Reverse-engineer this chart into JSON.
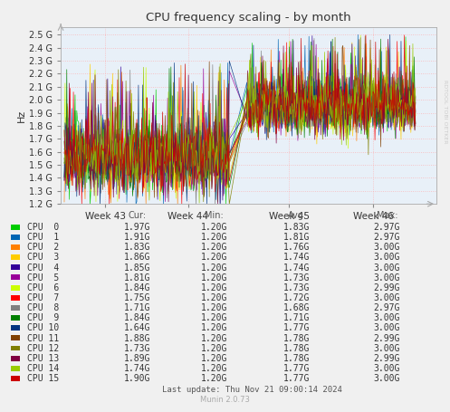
{
  "title": "CPU frequency scaling - by month",
  "ylabel": "Hz",
  "watermark": "RDTOOL TOBI OETKER",
  "munin_version": "Munin 2.0.73",
  "last_update": "Last update: Thu Nov 21 09:00:14 2024",
  "x_tick_labels": [
    "Week 43",
    "Week 44",
    "Week 45",
    "Week 46"
  ],
  "y_tick_labels": [
    "1.2 G",
    "1.3 G",
    "1.4 G",
    "1.5 G",
    "1.6 G",
    "1.7 G",
    "1.8 G",
    "1.9 G",
    "2.0 G",
    "2.1 G",
    "2.2 G",
    "2.3 G",
    "2.4 G",
    "2.5 G"
  ],
  "y_min": 1.2,
  "y_max": 2.56,
  "cpus": [
    {
      "name": "CPU  0",
      "color": "#00cc00",
      "cur": "1.97G",
      "min": "1.20G",
      "avg": "1.83G",
      "max": "2.97G"
    },
    {
      "name": "CPU  1",
      "color": "#0066b3",
      "cur": "1.91G",
      "min": "1.20G",
      "avg": "1.81G",
      "max": "2.97G"
    },
    {
      "name": "CPU  2",
      "color": "#ff8000",
      "cur": "1.83G",
      "min": "1.20G",
      "avg": "1.76G",
      "max": "3.00G"
    },
    {
      "name": "CPU  3",
      "color": "#ffcc00",
      "cur": "1.86G",
      "min": "1.20G",
      "avg": "1.74G",
      "max": "3.00G"
    },
    {
      "name": "CPU  4",
      "color": "#330099",
      "cur": "1.85G",
      "min": "1.20G",
      "avg": "1.74G",
      "max": "3.00G"
    },
    {
      "name": "CPU  5",
      "color": "#990099",
      "cur": "1.81G",
      "min": "1.20G",
      "avg": "1.73G",
      "max": "3.00G"
    },
    {
      "name": "CPU  6",
      "color": "#ccff00",
      "cur": "1.84G",
      "min": "1.20G",
      "avg": "1.73G",
      "max": "2.99G"
    },
    {
      "name": "CPU  7",
      "color": "#ff0000",
      "cur": "1.75G",
      "min": "1.20G",
      "avg": "1.72G",
      "max": "3.00G"
    },
    {
      "name": "CPU  8",
      "color": "#808080",
      "cur": "1.71G",
      "min": "1.20G",
      "avg": "1.68G",
      "max": "2.97G"
    },
    {
      "name": "CPU  9",
      "color": "#008000",
      "cur": "1.84G",
      "min": "1.20G",
      "avg": "1.71G",
      "max": "3.00G"
    },
    {
      "name": "CPU 10",
      "color": "#003380",
      "cur": "1.64G",
      "min": "1.20G",
      "avg": "1.77G",
      "max": "3.00G"
    },
    {
      "name": "CPU 11",
      "color": "#804000",
      "cur": "1.88G",
      "min": "1.20G",
      "avg": "1.78G",
      "max": "2.99G"
    },
    {
      "name": "CPU 12",
      "color": "#808000",
      "cur": "1.73G",
      "min": "1.20G",
      "avg": "1.78G",
      "max": "3.00G"
    },
    {
      "name": "CPU 13",
      "color": "#800040",
      "cur": "1.89G",
      "min": "1.20G",
      "avg": "1.78G",
      "max": "2.99G"
    },
    {
      "name": "CPU 14",
      "color": "#99cc00",
      "cur": "1.74G",
      "min": "1.20G",
      "avg": "1.77G",
      "max": "3.00G"
    },
    {
      "name": "CPU 15",
      "color": "#cc0000",
      "cur": "1.90G",
      "min": "1.20G",
      "avg": "1.77G",
      "max": "3.00G"
    }
  ],
  "bg_color": "#f0f0f0",
  "plot_bg_color": "#ffffff",
  "grid_color": "#ffaaaa",
  "phase1_base": 1.55,
  "phase1_std": 0.13,
  "phase2_base": 1.95,
  "phase2_std": 0.1
}
